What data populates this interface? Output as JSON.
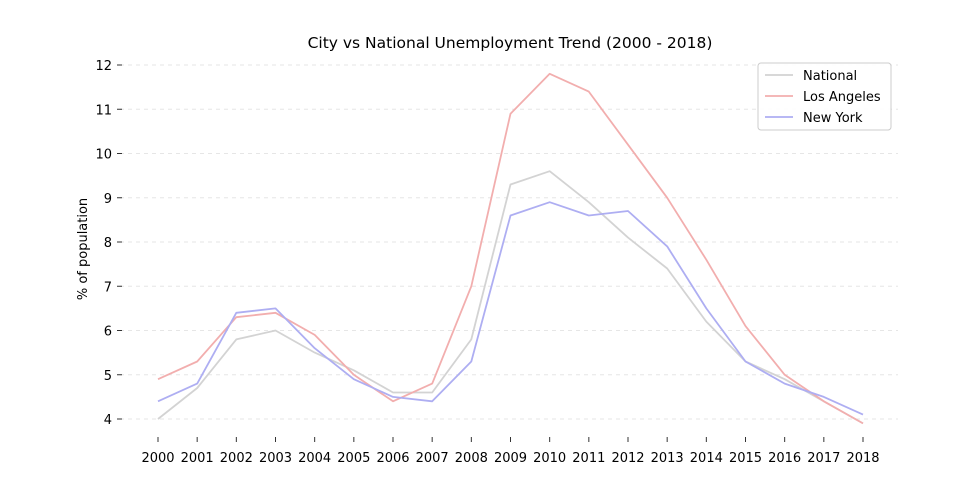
{
  "chart_data": {
    "type": "line",
    "title": "City vs National Unemployment Trend (2000 - 2018)",
    "xlabel": "",
    "ylabel": "% of population",
    "x": [
      "2000",
      "2001",
      "2002",
      "2003",
      "2004",
      "2005",
      "2006",
      "2007",
      "2008",
      "2009",
      "2010",
      "2011",
      "2012",
      "2013",
      "2014",
      "2015",
      "2016",
      "2017",
      "2018"
    ],
    "ylim": [
      4,
      12
    ],
    "yticks": [
      4,
      5,
      6,
      7,
      8,
      9,
      10,
      11,
      12
    ],
    "grid": "horizontal dashed",
    "legend_position": "top-right",
    "series": [
      {
        "name": "National",
        "color": "#d3d3d3",
        "values": [
          4.0,
          4.7,
          5.8,
          6.0,
          5.5,
          5.1,
          4.6,
          4.6,
          5.8,
          9.3,
          9.6,
          8.9,
          8.1,
          7.4,
          6.2,
          5.3,
          4.9,
          4.4,
          3.9
        ]
      },
      {
        "name": "Los Angeles",
        "color": "#f2aeae",
        "values": [
          4.9,
          5.3,
          6.3,
          6.4,
          5.9,
          5.0,
          4.4,
          4.8,
          7.0,
          10.9,
          11.8,
          11.4,
          10.2,
          9.0,
          7.6,
          6.1,
          5.0,
          4.4,
          3.9
        ]
      },
      {
        "name": "New York",
        "color": "#aeaef2",
        "values": [
          4.4,
          4.8,
          6.4,
          6.5,
          5.6,
          4.9,
          4.5,
          4.4,
          5.3,
          8.6,
          8.9,
          8.6,
          8.7,
          7.9,
          6.5,
          5.3,
          4.8,
          4.5,
          4.1
        ]
      }
    ]
  }
}
